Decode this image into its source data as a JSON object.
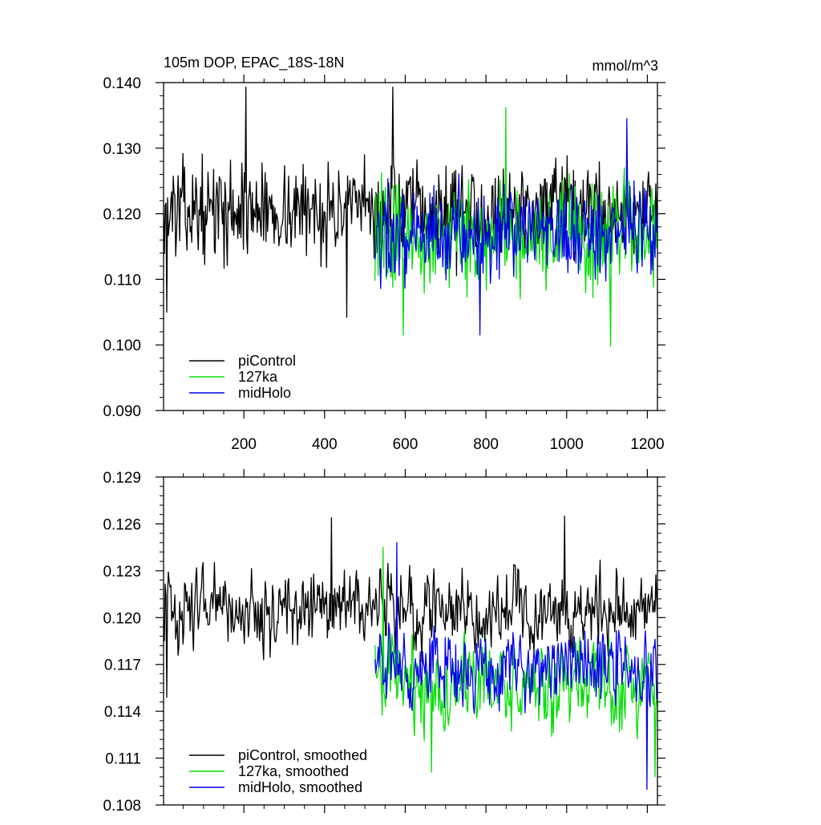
{
  "chart_data": [
    {
      "type": "line",
      "title_left": "105m DOP, EPAC_18S-18N",
      "title_right": "mmol/m^3",
      "xlim": [
        1,
        1225
      ],
      "ylim": [
        0.09,
        0.14
      ],
      "x_ticks": [
        200,
        400,
        600,
        800,
        1000,
        1200
      ],
      "y_ticks": [
        "0.090",
        "0.100",
        "0.110",
        "0.120",
        "0.130",
        "0.140"
      ],
      "legend_position": "bottom-left",
      "series": [
        {
          "name": "piControl",
          "color": "#000000",
          "x_start": 1,
          "x_end": 1225,
          "mean": 0.1205,
          "amplitude": 0.0055,
          "peak_high": [
            [
              205,
              0.1393
            ],
            [
              570,
              0.1393
            ]
          ],
          "peak_low": [
            [
              9,
              0.105
            ],
            [
              455,
              0.1042
            ]
          ]
        },
        {
          "name": "127ka",
          "color": "#00e000",
          "x_start": 525,
          "x_end": 1225,
          "mean": 0.1165,
          "amplitude": 0.0065,
          "peak_high": [
            [
              850,
              0.1362
            ]
          ],
          "peak_low": [
            [
              595,
              0.1015
            ],
            [
              1110,
              0.0998
            ]
          ]
        },
        {
          "name": "midHolo",
          "color": "#0000ee",
          "x_start": 525,
          "x_end": 1225,
          "mean": 0.117,
          "amplitude": 0.0055,
          "peak_high": [
            [
              1150,
              0.1345
            ]
          ],
          "peak_low": [
            [
              785,
              0.1015
            ]
          ]
        }
      ]
    },
    {
      "type": "line",
      "xlim": [
        1,
        1225
      ],
      "ylim": [
        0.108,
        0.129
      ],
      "x_ticks": [
        200,
        400,
        600,
        800,
        1000,
        1200
      ],
      "y_ticks": [
        "0.108",
        "0.111",
        "0.114",
        "0.117",
        "0.120",
        "0.123",
        "0.126",
        "0.129"
      ],
      "legend_position": "bottom-left",
      "series": [
        {
          "name": "piControl, smoothed",
          "color": "#000000",
          "x_start": 1,
          "x_end": 1225,
          "mean": 0.1205,
          "amplitude": 0.0022,
          "peak_high": [
            [
              418,
              0.1264
            ],
            [
              995,
              0.1265
            ]
          ],
          "peak_low": [
            [
              10,
              0.1149
            ]
          ]
        },
        {
          "name": "127ka, smoothed",
          "color": "#00e000",
          "x_start": 525,
          "x_end": 1225,
          "mean": 0.1157,
          "amplitude": 0.0025,
          "peak_high": [
            [
              545,
              0.1245
            ]
          ],
          "peak_low": [
            [
              665,
              0.1101
            ],
            [
              1220,
              0.1098
            ]
          ]
        },
        {
          "name": "midHolo, smoothed",
          "color": "#0000ee",
          "x_start": 525,
          "x_end": 1225,
          "mean": 0.1168,
          "amplitude": 0.0022,
          "peak_high": [
            [
              580,
              0.1248
            ]
          ],
          "peak_low": [
            [
              1200,
              0.109
            ]
          ]
        }
      ]
    }
  ]
}
